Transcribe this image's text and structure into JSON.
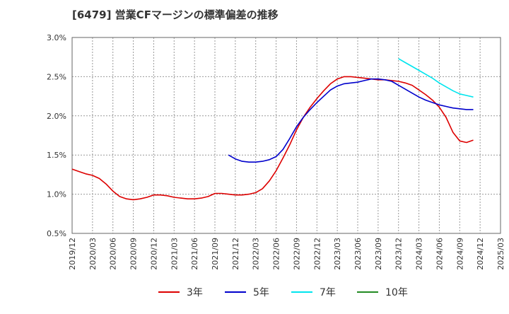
{
  "chart_data": {
    "type": "line",
    "title": "[6479]  営業CFマージンの標準偏差の推移",
    "xlabel": "",
    "ylabel": "",
    "ylim": [
      0.5,
      3.0
    ],
    "yticks": [
      0.5,
      1.0,
      1.5,
      2.0,
      2.5,
      3.0
    ],
    "yticklabels": [
      "0.5%",
      "1.0%",
      "1.5%",
      "2.0%",
      "2.5%",
      "3.0%"
    ],
    "x_start": "2019/12",
    "x_end": "2025/03",
    "xticklabels": [
      "2019/12",
      "2020/03",
      "2020/06",
      "2020/09",
      "2020/12",
      "2021/03",
      "2021/06",
      "2021/09",
      "2021/12",
      "2022/03",
      "2022/06",
      "2022/09",
      "2022/12",
      "2023/03",
      "2023/06",
      "2023/09",
      "2023/12",
      "2024/03",
      "2024/06",
      "2024/09",
      "2024/12",
      "2025/03"
    ],
    "grid": true,
    "legend_position": "bottom",
    "series": [
      {
        "name": "3年",
        "color": "#dd0000",
        "x": [
          "2019/12",
          "2020/01",
          "2020/02",
          "2020/03",
          "2020/04",
          "2020/05",
          "2020/06",
          "2020/07",
          "2020/08",
          "2020/09",
          "2020/10",
          "2020/11",
          "2020/12",
          "2021/01",
          "2021/02",
          "2021/03",
          "2021/04",
          "2021/05",
          "2021/06",
          "2021/07",
          "2021/08",
          "2021/09",
          "2021/10",
          "2021/11",
          "2021/12",
          "2022/01",
          "2022/02",
          "2022/03",
          "2022/04",
          "2022/05",
          "2022/06",
          "2022/07",
          "2022/08",
          "2022/09",
          "2022/10",
          "2022/11",
          "2022/12",
          "2023/01",
          "2023/02",
          "2023/03",
          "2023/04",
          "2023/05",
          "2023/06",
          "2023/07",
          "2023/08",
          "2023/09",
          "2023/10",
          "2023/11",
          "2023/12",
          "2024/01",
          "2024/02",
          "2024/03",
          "2024/04",
          "2024/05",
          "2024/06",
          "2024/07",
          "2024/08",
          "2024/09",
          "2024/10",
          "2024/11",
          "2024/12"
        ],
        "values": [
          1.32,
          1.29,
          1.26,
          1.24,
          1.2,
          1.13,
          1.04,
          0.97,
          0.94,
          0.93,
          0.94,
          0.96,
          0.99,
          0.99,
          0.98,
          0.96,
          0.95,
          0.94,
          0.94,
          0.95,
          0.97,
          1.01,
          1.01,
          1.0,
          0.99,
          0.99,
          1.0,
          1.02,
          1.07,
          1.17,
          1.3,
          1.46,
          1.63,
          1.82,
          1.98,
          2.11,
          2.22,
          2.32,
          2.41,
          2.47,
          2.5,
          2.5,
          2.49,
          2.48,
          2.47,
          2.46,
          2.46,
          2.45,
          2.44,
          2.42,
          2.39,
          2.33,
          2.27,
          2.2,
          2.11,
          1.98,
          1.79,
          1.68,
          1.66,
          1.69,
          null
        ]
      },
      {
        "name": "5年",
        "color": "#0000cc",
        "x": [
          "2021/11",
          "2021/12",
          "2022/01",
          "2022/02",
          "2022/03",
          "2022/04",
          "2022/05",
          "2022/06",
          "2022/07",
          "2022/08",
          "2022/09",
          "2022/10",
          "2022/11",
          "2022/12",
          "2023/01",
          "2023/02",
          "2023/03",
          "2023/04",
          "2023/05",
          "2023/06",
          "2023/07",
          "2023/08",
          "2023/09",
          "2023/10",
          "2023/11",
          "2023/12",
          "2024/01",
          "2024/02",
          "2024/03",
          "2024/04",
          "2024/05",
          "2024/06",
          "2024/07",
          "2024/08",
          "2024/09",
          "2024/10",
          "2024/11",
          "2024/12"
        ],
        "values": [
          1.5,
          1.45,
          1.42,
          1.41,
          1.41,
          1.42,
          1.44,
          1.48,
          1.57,
          1.71,
          1.86,
          1.98,
          2.08,
          2.17,
          2.25,
          2.33,
          2.38,
          2.41,
          2.42,
          2.43,
          2.45,
          2.47,
          2.47,
          2.46,
          2.44,
          2.39,
          2.34,
          2.29,
          2.24,
          2.2,
          2.17,
          2.14,
          2.12,
          2.1,
          2.09,
          2.08,
          2.08,
          null
        ]
      },
      {
        "name": "7年",
        "color": "#00e5ee",
        "x": [
          "2023/12",
          "2024/01",
          "2024/02",
          "2024/03",
          "2024/04",
          "2024/05",
          "2024/06",
          "2024/07",
          "2024/08",
          "2024/09",
          "2024/10",
          "2024/11",
          "2024/12"
        ],
        "values": [
          2.73,
          2.68,
          2.63,
          2.58,
          2.53,
          2.48,
          2.42,
          2.37,
          2.32,
          2.28,
          2.26,
          2.24,
          null
        ]
      },
      {
        "name": "10年",
        "color": "#228b22",
        "x": [],
        "values": []
      }
    ]
  }
}
